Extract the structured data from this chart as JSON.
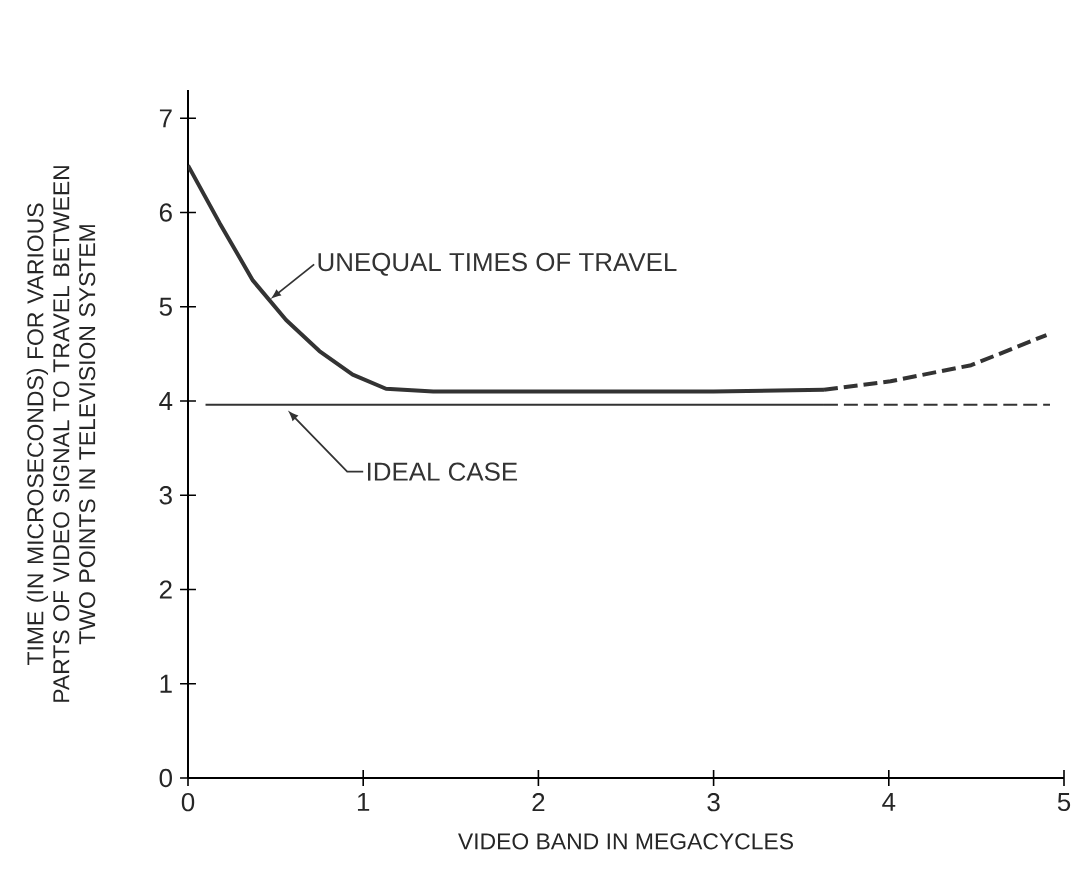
{
  "chart_data": {
    "type": "line",
    "xlabel": "VIDEO BAND IN MEGACYCLES",
    "ylabel": "TIME (IN MICROSECONDS) FOR VARIOUS PARTS OF VIDEO SIGNAL TO TRAVEL BETWEEN TWO POINTS IN TELEVISION SYSTEM",
    "xlim": [
      0,
      5
    ],
    "ylim": [
      0,
      7.3
    ],
    "xticks": [
      0,
      1,
      2,
      3,
      4,
      5
    ],
    "yticks": [
      0,
      1,
      2,
      3,
      4,
      5,
      6,
      7
    ],
    "grid": false,
    "series": [
      {
        "name": "UNEQUAL TIMES OF TRAVEL",
        "color": "#333333",
        "line_style": "solid",
        "x": [
          0,
          0.18,
          0.37,
          0.56,
          0.75,
          0.94,
          1.13,
          1.4,
          2.0,
          3.0,
          3.63
        ],
        "values": [
          6.5,
          5.89,
          5.28,
          4.86,
          4.53,
          4.28,
          4.13,
          4.1,
          4.1,
          4.1,
          4.12
        ]
      },
      {
        "color": "#333333",
        "line_style": "dashed",
        "x": [
          3.63,
          4.01,
          4.47,
          4.9
        ],
        "values": [
          4.12,
          4.21,
          4.38,
          4.7
        ]
      },
      {
        "name": "IDEAL CASE",
        "color": "#333333",
        "line_style": "solid",
        "x": [
          0.1,
          3.63
        ],
        "values": [
          3.96,
          3.96
        ]
      },
      {
        "color": "#333333",
        "line_style": "dashed",
        "x": [
          3.63,
          4.92
        ],
        "values": [
          3.96,
          3.96
        ]
      }
    ]
  }
}
